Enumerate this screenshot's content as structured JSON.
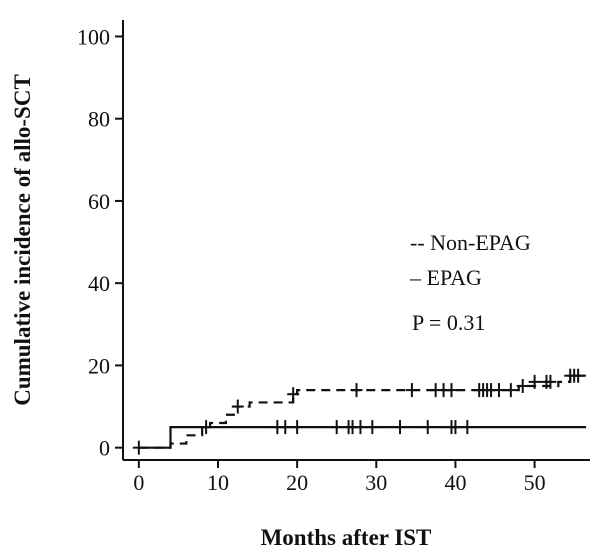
{
  "chart_data": {
    "type": "line",
    "title": "",
    "xlabel": "Months after IST",
    "ylabel": "Cumulative incidence of allo-SCT",
    "xlim": [
      -2,
      57
    ],
    "ylim": [
      -3,
      104
    ],
    "xticks": [
      0,
      10,
      20,
      30,
      40,
      50
    ],
    "yticks": [
      0,
      20,
      40,
      60,
      80,
      100
    ],
    "grid": false,
    "legend_position": "center-right",
    "annotation": "P = 0.31",
    "series": [
      {
        "name": "Non-EPAG",
        "legend_label": "-- Non-EPAG",
        "style": "dashed",
        "color": "#111111",
        "step_x": [
          0,
          4,
          6,
          8,
          9,
          11,
          12,
          14,
          19.5,
          20,
          47,
          48,
          53,
          54.5,
          56.5
        ],
        "step_y": [
          0,
          1,
          3,
          5,
          6,
          8,
          10,
          11,
          13,
          14,
          14,
          15,
          16,
          17.5,
          17.5
        ],
        "censor_x": [
          0,
          8.5,
          12.5,
          19.5,
          27.5,
          34.5,
          37.5,
          38.5,
          39.5,
          43,
          43.5,
          44,
          44.5,
          45.5,
          47,
          48.5,
          50,
          51.5,
          52,
          54.5,
          55,
          55.5
        ],
        "censor_y": [
          0,
          5,
          10,
          13,
          14,
          14,
          14,
          14,
          14,
          14,
          14,
          14,
          14,
          14,
          14,
          15,
          16,
          16,
          16,
          17.5,
          17.5,
          17.5
        ]
      },
      {
        "name": "EPAG",
        "legend_label": "– EPAG",
        "style": "solid",
        "color": "#111111",
        "step_x": [
          0,
          4,
          56.5
        ],
        "step_y": [
          0,
          5,
          5
        ],
        "censor_x": [
          17.5,
          18.5,
          20,
          25,
          26.5,
          27,
          28,
          29.5,
          33,
          36.5,
          39.5,
          40,
          41.5
        ],
        "censor_y": [
          5,
          5,
          5,
          5,
          5,
          5,
          5,
          5,
          5,
          5,
          5,
          5,
          5
        ]
      }
    ]
  }
}
